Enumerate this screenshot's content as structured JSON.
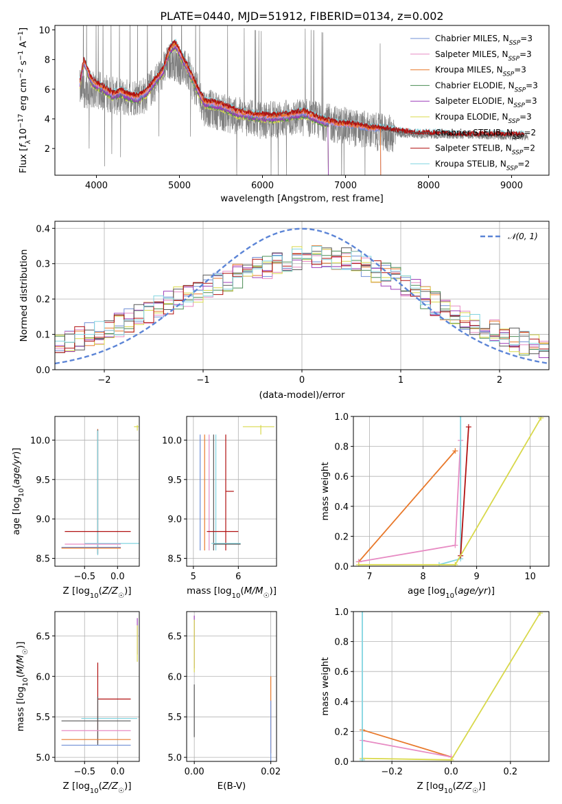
{
  "figure": {
    "title": "PLATE=0440, MJD=51912, FIBERID=0134, z=0.002"
  },
  "colors": {
    "Chabrier MILES": "#6f8fd6",
    "Salpeter MILES": "#e78ac3",
    "Kroupa MILES": "#c7852e",
    "Chabrier ELODIE": "#4a8c53",
    "Salpeter ELODIE": "#9c3cb8",
    "Kroupa ELODIE": "#d8d84a",
    "Chabrier STELIB": "#555555",
    "Salpeter STELIB": "#b00f0f",
    "Kroupa STELIB": "#80d4e0",
    "data": "#7f7f7f",
    "gaussian": "#5b84d6",
    "orange": "#e8782a",
    "grid": "#b0b0b0"
  },
  "legend_spectrum": [
    {
      "model": "Chabrier MILES",
      "n": "3"
    },
    {
      "model": "Salpeter MILES",
      "n": "3"
    },
    {
      "model": "Kroupa MILES",
      "n": "3"
    },
    {
      "model": "Chabrier ELODIE",
      "n": "3"
    },
    {
      "model": "Salpeter ELODIE",
      "n": "3"
    },
    {
      "model": "Kroupa ELODIE",
      "n": "3"
    },
    {
      "model": "Chabrier STELIB",
      "n": "2"
    },
    {
      "model": "Salpeter STELIB",
      "n": "2"
    },
    {
      "model": "Kroupa STELIB",
      "n": "2"
    }
  ],
  "legend_dist": "𝒩(0, 1)",
  "chart_data": [
    {
      "id": "spectrum",
      "type": "line",
      "title": "PLATE=0440, MJD=51912, FIBERID=0134, z=0.002",
      "xlabel": "wavelength [Angstrom, rest frame]",
      "ylabel": "Flux [f_λ 10^-17 erg cm^-2 s^-1 A^-1]",
      "xlim": [
        3500,
        9450
      ],
      "ylim": [
        0.2,
        10.3
      ],
      "xticks": [
        4000,
        5000,
        6000,
        7000,
        8000,
        9000
      ],
      "yticks": [
        2,
        4,
        6,
        8,
        10
      ],
      "grid": false,
      "legend": "upper right",
      "model_anchors": {
        "x": [
          3800,
          3850,
          3900,
          3950,
          4000,
          4100,
          4200,
          4300,
          4400,
          4500,
          4600,
          4700,
          4800,
          4850,
          4900,
          4950,
          5000,
          5100,
          5200,
          5300,
          5500,
          5700,
          5900,
          6100,
          6300,
          6500,
          6700,
          6900,
          7100,
          7300,
          7500,
          7700,
          7900,
          8100,
          8300,
          8500,
          8700,
          8900,
          9100
        ],
        "y": [
          6.5,
          8.0,
          7.2,
          6.6,
          6.4,
          6.1,
          5.7,
          5.9,
          5.6,
          5.5,
          5.9,
          6.6,
          7.3,
          8.2,
          8.9,
          9.1,
          8.6,
          7.5,
          6.3,
          5.2,
          5.0,
          4.5,
          4.3,
          4.2,
          4.3,
          4.5,
          4.0,
          3.7,
          3.6,
          3.4,
          3.3,
          3.1,
          3.0,
          3.0,
          2.9,
          2.9,
          2.9,
          2.9,
          2.9
        ]
      },
      "miles_cutoff": 7420,
      "elodie_cutoff": 6790,
      "data_range": [
        3800,
        9200
      ],
      "data_anchors": {
        "x": [
          3800,
          4000,
          4300,
          4600,
          4900,
          5100,
          5300,
          5600,
          6000,
          6500,
          7000,
          7500,
          8000,
          8500,
          9000,
          9200
        ],
        "y": [
          6.0,
          6.0,
          5.4,
          5.6,
          8.0,
          7.2,
          4.8,
          4.3,
          3.9,
          4.1,
          3.5,
          3.0,
          2.9,
          2.9,
          2.8,
          2.8
        ]
      }
    },
    {
      "id": "residuals",
      "type": "line",
      "xlabel": "(data-model)/error",
      "ylabel": "Normed distribution",
      "xlim": [
        -2.5,
        2.5
      ],
      "ylim": [
        0,
        0.42
      ],
      "xticks": [
        -2,
        -1,
        0,
        1,
        2
      ],
      "yticks": [
        0.0,
        0.1,
        0.2,
        0.3,
        0.4
      ],
      "grid": true,
      "legend": "upper right",
      "gaussian": {
        "mu": 0,
        "sigma": 1
      },
      "hist_anchors": {
        "x": [
          -2.5,
          -2.0,
          -1.5,
          -1.0,
          -0.5,
          0.0,
          0.5,
          1.0,
          1.5,
          2.0,
          2.5
        ],
        "y": [
          0.07,
          0.11,
          0.17,
          0.23,
          0.28,
          0.32,
          0.31,
          0.25,
          0.16,
          0.1,
          0.05
        ]
      }
    },
    {
      "id": "age_vs_Z",
      "type": "scatter",
      "xlabel": "Z [log₁₀(Z/Z☉)]",
      "ylabel": "age [log₁₀(age/yr)]",
      "xlim": [
        -0.95,
        0.33
      ],
      "ylim": [
        8.4,
        10.3
      ],
      "xticks": [
        -0.5,
        0.0
      ],
      "yticks": [
        8.5,
        9.0,
        9.5,
        10.0
      ],
      "grid": true,
      "points": [
        {
          "model": "Chabrier MILES",
          "x": -0.3,
          "y": 10.06
        },
        {
          "model": "Salpeter MILES",
          "x": -0.3,
          "y": 10.05
        },
        {
          "model": "Kroupa MILES",
          "x": -0.3,
          "y": 10.06
        },
        {
          "model": "Chabrier STELIB",
          "x": -0.3,
          "y": 10.05
        },
        {
          "model": "Kroupa STELIB",
          "x": -0.3,
          "y": 10.04
        },
        {
          "model": "Kroupa ELODIE",
          "x": 0.3,
          "y": 10.17
        },
        {
          "model": "Salpeter STELIB",
          "x": -0.3,
          "y": 8.84
        },
        {
          "model": "Kroupa STELIB",
          "x": 0.0,
          "y": 8.69
        },
        {
          "model": "Salpeter MILES",
          "x": -0.3,
          "y": 8.68
        },
        {
          "model": "Chabrier MILES",
          "x": -0.3,
          "y": 8.64
        },
        {
          "model": "Kroupa MILES",
          "x": -0.3,
          "y": 8.63
        }
      ]
    },
    {
      "id": "age_vs_mass",
      "type": "scatter",
      "xlabel": "mass [log₁₀(M/M☉)]",
      "xlim": [
        4.85,
        6.85
      ],
      "ylim": [
        8.4,
        10.3
      ],
      "xticks": [
        5,
        6
      ],
      "yticks": [
        8.5,
        9.0,
        9.5,
        10.0
      ],
      "grid": true,
      "points": [
        {
          "model": "Chabrier MILES",
          "x": 5.15,
          "y": 9.35
        },
        {
          "model": "Kroupa MILES",
          "x": 5.25,
          "y": 9.35
        },
        {
          "model": "Salpeter MILES",
          "x": 5.35,
          "y": 9.35
        },
        {
          "model": "Chabrier STELIB",
          "x": 5.45,
          "y": 9.35
        },
        {
          "model": "Kroupa STELIB",
          "x": 5.5,
          "y": 9.35
        },
        {
          "model": "Salpeter STELIB",
          "x": 5.72,
          "y": 9.35
        },
        {
          "model": "Kroupa ELODIE",
          "x": 6.5,
          "y": 10.17
        }
      ]
    },
    {
      "id": "massweight_vs_age",
      "type": "line",
      "xlabel": "age [log₁₀(age/yr)]",
      "ylabel": "mass weight",
      "xlim": [
        6.7,
        10.35
      ],
      "ylim": [
        0,
        1.0
      ],
      "xticks": [
        7,
        8,
        9,
        10
      ],
      "yticks": [
        0.0,
        0.2,
        0.4,
        0.6,
        0.8,
        1.0
      ],
      "grid": true,
      "series": [
        {
          "model": "Kroupa MILES",
          "x": [
            6.8,
            8.6
          ],
          "y": [
            0.03,
            0.77
          ]
        },
        {
          "model": "Salpeter MILES",
          "x": [
            6.8,
            8.6,
            8.7
          ],
          "y": [
            0.03,
            0.14,
            0.84
          ]
        },
        {
          "model": "Kroupa STELIB",
          "x": [
            8.3,
            8.7,
            8.7
          ],
          "y": [
            0.01,
            0.05,
            1.0
          ]
        },
        {
          "model": "Salpeter STELIB",
          "x": [
            8.7,
            8.85
          ],
          "y": [
            0.07,
            0.93
          ]
        },
        {
          "model": "Kroupa ELODIE",
          "x": [
            6.8,
            8.6,
            10.2
          ],
          "y": [
            0.01,
            0.01,
            0.99
          ]
        }
      ]
    },
    {
      "id": "mass_vs_Z",
      "type": "scatter",
      "xlabel": "Z [log₁₀(Z/Z☉)]",
      "ylabel": "mass [log₁₀(M/M☉)]",
      "xlim": [
        -0.95,
        0.33
      ],
      "ylim": [
        4.95,
        6.8
      ],
      "xticks": [
        -0.5,
        0.0
      ],
      "yticks": [
        5.0,
        5.5,
        6.0,
        6.5
      ],
      "grid": true,
      "points": [
        {
          "model": "Salpeter STELIB",
          "x": -0.3,
          "y": 5.72
        },
        {
          "model": "Kroupa STELIB",
          "x": 0.0,
          "y": 5.48
        },
        {
          "model": "Chabrier STELIB",
          "x": -0.3,
          "y": 5.45
        },
        {
          "model": "Salpeter MILES",
          "x": -0.3,
          "y": 5.33
        },
        {
          "model": "Kroupa MILES",
          "x": -0.3,
          "y": 5.22
        },
        {
          "model": "Chabrier MILES",
          "x": -0.3,
          "y": 5.15
        },
        {
          "model": "Salpeter ELODIE",
          "x": 0.3,
          "y": 6.57
        },
        {
          "model": "Kroupa ELODIE",
          "x": 0.3,
          "y": 6.48
        }
      ]
    },
    {
      "id": "mass_vs_EBV",
      "type": "scatter",
      "xlabel": "E(B-V)",
      "xlim": [
        -0.002,
        0.0215
      ],
      "ylim": [
        4.95,
        6.8
      ],
      "xticks": [
        0.0,
        0.02
      ],
      "yticks": [
        5.0,
        5.5,
        6.0,
        6.5
      ],
      "grid": true,
      "points": [
        {
          "model": "Salpeter ELODIE",
          "x": 0.0,
          "y": 6.5
        },
        {
          "model": "Kroupa ELODIE",
          "x": 0.0,
          "y": 6.45
        },
        {
          "model": "Chabrier STELIB",
          "x": 0.0,
          "y": 5.65
        },
        {
          "model": "Kroupa MILES",
          "x": 0.02,
          "y": 5.5
        },
        {
          "model": "Chabrier MILES",
          "x": 0.02,
          "y": 5.2
        }
      ]
    },
    {
      "id": "massweight_vs_Z",
      "type": "line",
      "xlabel": "Z [log₁₀(Z/Z☉)]",
      "ylabel": "mass weight",
      "xlim": [
        -0.33,
        0.33
      ],
      "ylim": [
        0,
        1.0
      ],
      "xticks": [
        -0.2,
        0.0,
        0.2
      ],
      "yticks": [
        0.0,
        0.2,
        0.4,
        0.6,
        0.8,
        1.0
      ],
      "grid": true,
      "series": [
        {
          "model": "Kroupa MILES",
          "x": [
            -0.3,
            0.0
          ],
          "y": [
            0.21,
            0.03
          ]
        },
        {
          "model": "Salpeter MILES",
          "x": [
            -0.3,
            0.0
          ],
          "y": [
            0.14,
            0.03
          ]
        },
        {
          "model": "Kroupa ELODIE",
          "x": [
            -0.3,
            0.0,
            0.3
          ],
          "y": [
            0.02,
            0.01,
            0.99
          ]
        },
        {
          "model": "Kroupa STELIB",
          "x": [
            -0.3,
            -0.3
          ],
          "y": [
            0.01,
            1.0
          ]
        }
      ]
    }
  ]
}
